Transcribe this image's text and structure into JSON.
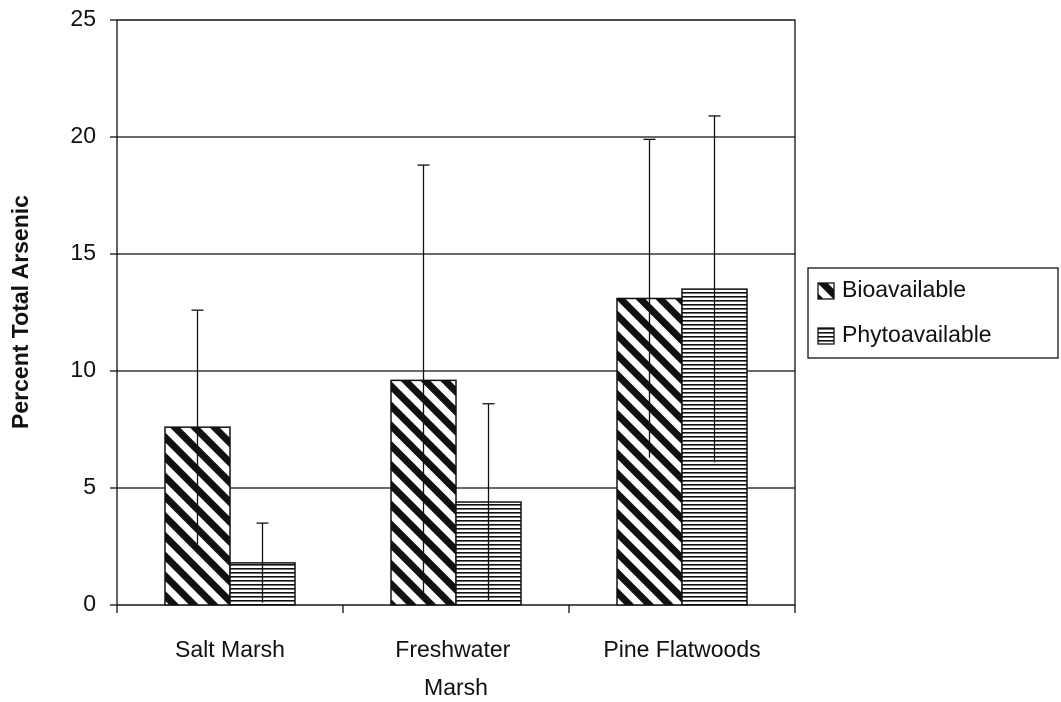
{
  "chart_data": {
    "type": "bar",
    "y_label": "Percent Total Arsenic",
    "categories": [
      "Salt Marsh",
      "Freshwater Marsh",
      "Pine Flatwoods"
    ],
    "series": [
      {
        "name": "Bioavailable",
        "color": "#111111",
        "pattern": "diagonal",
        "values": [
          7.6,
          9.6,
          13.1
        ],
        "errors": [
          5.0,
          9.2,
          6.8
        ]
      },
      {
        "name": "Phytoavailable",
        "color": "#111111",
        "pattern": "horizontal",
        "values": [
          1.8,
          4.4,
          13.5
        ],
        "errors": [
          1.7,
          4.2,
          7.4
        ]
      }
    ],
    "ylim": [
      0,
      25
    ],
    "yticks": [
      0,
      5,
      10,
      15,
      20,
      25
    ],
    "grid": true,
    "legend": "right"
  }
}
